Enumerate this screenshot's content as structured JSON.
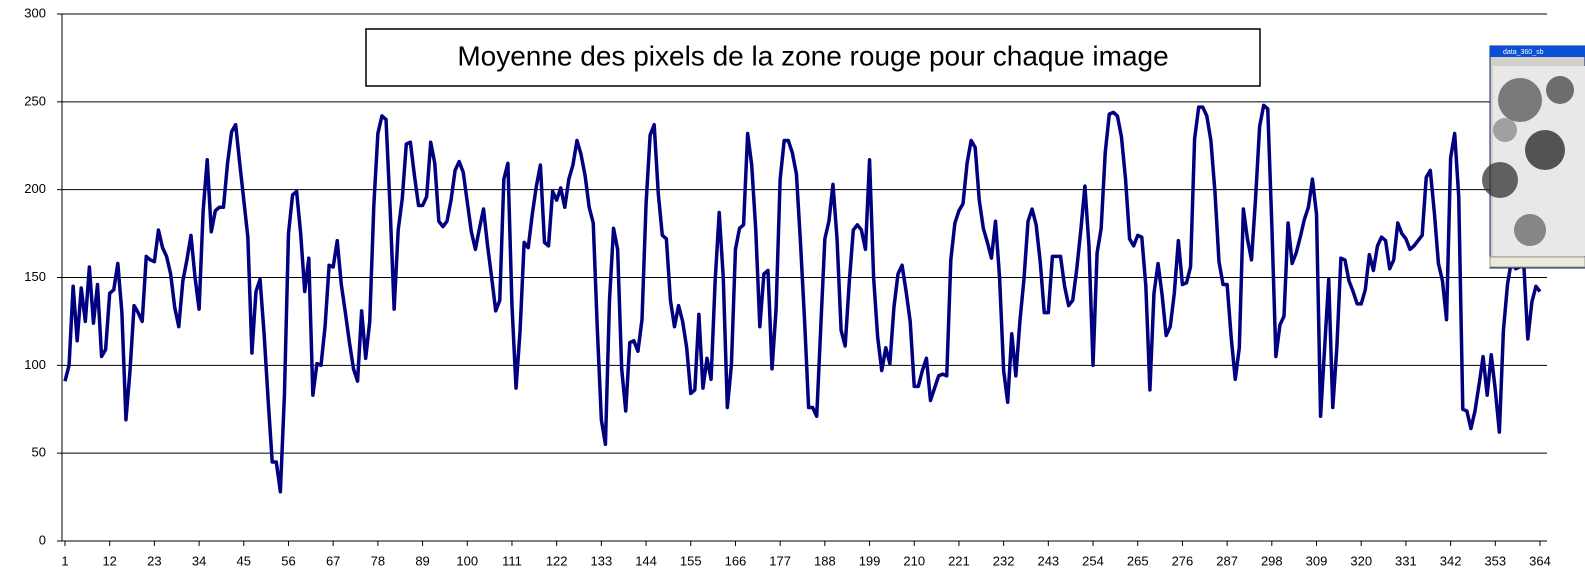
{
  "chart_data": {
    "type": "line",
    "title": "Moyenne des pixels de la zone rouge pour chaque image",
    "x": [
      1,
      2,
      3,
      4,
      5,
      6,
      7,
      8,
      9,
      10,
      11,
      12,
      13,
      14,
      15,
      16,
      17,
      18,
      19,
      20,
      21,
      22,
      23,
      24,
      25,
      26,
      27,
      28,
      29,
      30,
      31,
      32,
      33,
      34,
      35,
      36,
      37,
      38,
      39,
      40,
      41,
      42,
      43,
      44,
      45,
      46,
      47,
      48,
      49,
      50,
      51,
      52,
      53,
      54,
      55,
      56,
      57,
      58,
      59,
      60,
      61,
      62,
      63,
      64,
      65,
      66,
      67,
      68,
      69,
      70,
      71,
      72,
      73,
      74,
      75,
      76,
      77,
      78,
      79,
      80,
      81,
      82,
      83,
      84,
      85,
      86,
      87,
      88,
      89,
      90,
      91,
      92,
      93,
      94,
      95,
      96,
      97,
      98,
      99,
      100,
      101,
      102,
      103,
      104,
      105,
      106,
      107,
      108,
      109,
      110,
      111,
      112,
      113,
      114,
      115,
      116,
      117,
      118,
      119,
      120,
      121,
      122,
      123,
      124,
      125,
      126,
      127,
      128,
      129,
      130,
      131,
      132,
      133,
      134,
      135,
      136,
      137,
      138,
      139,
      140,
      141,
      142,
      143,
      144,
      145,
      146,
      147,
      148,
      149,
      150,
      151,
      152,
      153,
      154,
      155,
      156,
      157,
      158,
      159,
      160,
      161,
      162,
      163,
      164,
      165,
      166,
      167,
      168,
      169,
      170,
      171,
      172,
      173,
      174,
      175,
      176,
      177,
      178,
      179,
      180,
      181,
      182,
      183,
      184,
      185,
      186,
      187,
      188,
      189,
      190,
      191,
      192,
      193,
      194,
      195,
      196,
      197,
      198,
      199,
      200,
      201,
      202,
      203,
      204,
      205,
      206,
      207,
      208,
      209,
      210,
      211,
      212,
      213,
      214,
      215,
      216,
      217,
      218,
      219,
      220,
      221,
      222,
      223,
      224,
      225,
      226,
      227,
      228,
      229,
      230,
      231,
      232,
      233,
      234,
      235,
      236,
      237,
      238,
      239,
      240,
      241,
      242,
      243,
      244,
      245,
      246,
      247,
      248,
      249,
      250,
      251,
      252,
      253,
      254,
      255,
      256,
      257,
      258,
      259,
      260,
      261,
      262,
      263,
      264,
      265,
      266,
      267,
      268,
      269,
      270,
      271,
      272,
      273,
      274,
      275,
      276,
      277,
      278,
      279,
      280,
      281,
      282,
      283,
      284,
      285,
      286,
      287,
      288,
      289,
      290,
      291,
      292,
      293,
      294,
      295,
      296,
      297,
      298,
      299,
      300,
      301,
      302,
      303,
      304,
      305,
      306,
      307,
      308,
      309,
      310,
      311,
      312,
      313,
      314,
      315,
      316,
      317,
      318,
      319,
      320,
      321,
      322,
      323,
      324,
      325,
      326,
      327,
      328,
      329,
      330,
      331,
      332,
      333,
      334,
      335,
      336,
      337,
      338,
      339,
      340,
      341,
      342,
      343,
      344,
      345,
      346,
      347,
      348,
      349,
      350,
      351,
      352,
      353,
      354,
      355,
      356,
      357,
      358,
      359,
      360,
      361,
      362,
      363,
      364
    ],
    "series": [
      {
        "color": "#000080",
        "values": [
          91,
          100,
          145,
          114,
          144,
          125,
          156,
          124,
          146,
          105,
          109,
          141,
          143,
          158,
          130,
          69,
          97,
          134,
          130,
          125,
          162,
          160,
          159,
          177,
          167,
          162,
          152,
          133,
          122,
          148,
          160,
          174,
          150,
          132,
          188,
          217,
          176,
          188,
          190,
          190,
          215,
          233,
          237,
          215,
          194,
          173,
          107,
          142,
          149,
          118,
          80,
          45,
          45,
          28,
          83,
          175,
          197,
          199,
          175,
          142,
          161,
          83,
          101,
          100,
          122,
          157,
          156,
          171,
          146,
          130,
          113,
          98,
          91,
          131,
          104,
          125,
          191,
          232,
          242,
          240,
          190,
          132,
          177,
          195,
          226,
          227,
          208,
          191,
          191,
          196,
          227,
          215,
          182,
          179,
          182,
          194,
          211,
          216,
          210,
          193,
          176,
          166,
          178,
          189,
          168,
          150,
          131,
          137,
          206,
          215,
          134,
          87,
          120,
          170,
          167,
          186,
          202,
          214,
          170,
          168,
          199,
          194,
          201,
          190,
          206,
          214,
          228,
          220,
          208,
          190,
          181,
          121,
          69,
          55,
          137,
          178,
          166,
          98,
          74,
          113,
          114,
          108,
          126,
          192,
          231,
          237,
          198,
          174,
          172,
          137,
          122,
          134,
          125,
          110,
          84,
          86,
          129,
          87,
          104,
          92,
          148,
          187,
          150,
          76,
          100,
          166,
          178,
          180,
          232,
          214,
          177,
          122,
          152,
          154,
          98,
          132,
          206,
          228,
          228,
          221,
          209,
          170,
          126,
          76,
          76,
          71,
          122,
          172,
          182,
          203,
          172,
          120,
          111,
          147,
          177,
          180,
          177,
          166,
          217,
          150,
          116,
          97,
          110,
          101,
          133,
          152,
          157,
          142,
          125,
          88,
          88,
          97,
          104,
          80,
          87,
          94,
          95,
          94,
          160,
          181,
          188,
          192,
          215,
          228,
          224,
          194,
          178,
          170,
          161,
          182,
          150,
          97,
          79,
          118,
          94,
          125,
          149,
          182,
          189,
          180,
          159,
          130,
          130,
          162,
          162,
          162,
          145,
          134,
          137,
          155,
          177,
          202,
          168,
          100,
          164,
          178,
          221,
          243,
          244,
          242,
          230,
          206,
          172,
          168,
          174,
          173,
          145,
          86,
          141,
          158,
          140,
          117,
          122,
          141,
          171,
          146,
          147,
          156,
          229,
          247,
          247,
          242,
          228,
          199,
          159,
          146,
          146,
          116,
          92,
          110,
          189,
          172,
          160,
          195,
          236,
          248,
          246,
          180,
          105,
          123,
          128,
          181,
          158,
          164,
          173,
          183,
          190,
          206,
          186,
          71,
          110,
          149,
          76,
          110,
          161,
          160,
          148,
          142,
          135,
          135,
          143,
          163,
          154,
          168,
          173,
          171,
          155,
          160,
          181,
          175,
          172,
          166,
          168,
          171,
          174,
          207,
          211,
          187,
          158,
          148,
          126,
          218,
          232,
          196,
          75,
          74,
          64,
          74,
          89,
          105,
          83,
          106,
          86,
          62,
          120,
          146,
          160,
          155,
          156,
          158,
          115,
          136,
          145,
          142
        ]
      }
    ],
    "xlim": [
      1,
      364
    ],
    "xticks": [
      1,
      12,
      23,
      34,
      45,
      56,
      67,
      78,
      89,
      100,
      111,
      122,
      133,
      144,
      155,
      166,
      177,
      188,
      199,
      210,
      221,
      232,
      243,
      254,
      265,
      276,
      287,
      298,
      309,
      320,
      331,
      342,
      353,
      364
    ],
    "ylim": [
      0,
      300
    ],
    "yticks": [
      0,
      50,
      100,
      150,
      200,
      250,
      300
    ],
    "grid": true
  },
  "thumbnail": {
    "title": "data_360_sb"
  }
}
